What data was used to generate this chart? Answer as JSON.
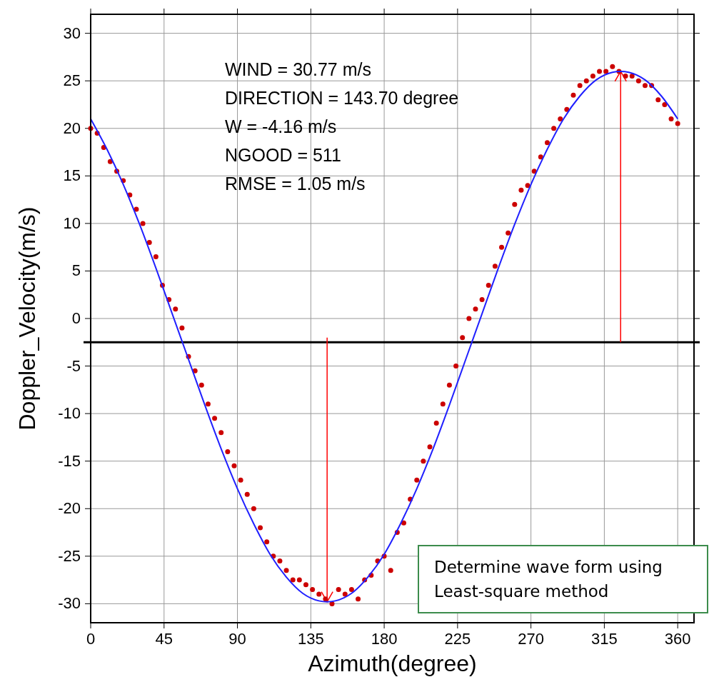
{
  "chart_data": {
    "type": "scatter",
    "xlabel": "Azimuth(degree)",
    "ylabel": "Doppler_Velocity(m/s)",
    "xlim": [
      0,
      370
    ],
    "xticks": [
      0,
      45,
      90,
      135,
      180,
      225,
      270,
      315,
      360
    ],
    "ylim": [
      -32,
      32
    ],
    "yticks": [
      -30,
      -25,
      -20,
      -15,
      -10,
      -5,
      0,
      5,
      10,
      15,
      20,
      25,
      30
    ],
    "grid": true,
    "series": [
      {
        "marker": "circle",
        "color": "#cc0000",
        "x": [
          0,
          4,
          8,
          12,
          16,
          20,
          24,
          28,
          32,
          36,
          40,
          44,
          48,
          52,
          56,
          60,
          64,
          68,
          72,
          76,
          80,
          84,
          88,
          92,
          96,
          100,
          104,
          108,
          112,
          116,
          120,
          124,
          128,
          132,
          136,
          140,
          144,
          148,
          152,
          156,
          160,
          164,
          168,
          172,
          176,
          180,
          184,
          188,
          192,
          196,
          200,
          204,
          208,
          212,
          216,
          220,
          224,
          228,
          232,
          236,
          240,
          244,
          248,
          252,
          256,
          260,
          264,
          268,
          272,
          276,
          280,
          284,
          288,
          292,
          296,
          300,
          304,
          308,
          312,
          316,
          320,
          324,
          328,
          332,
          336,
          340,
          344,
          348,
          352,
          356,
          360
        ],
        "values": [
          20.0,
          19.5,
          18.0,
          16.5,
          15.5,
          14.5,
          13.0,
          11.5,
          10.0,
          8.0,
          6.5,
          3.5,
          2.0,
          1.0,
          -1.0,
          -4.0,
          -5.5,
          -7.0,
          -9.0,
          -10.5,
          -12.0,
          -14.0,
          -15.5,
          -17.0,
          -18.5,
          -20.0,
          -22.0,
          -23.5,
          -25.0,
          -25.5,
          -26.5,
          -27.5,
          -27.5,
          -28.0,
          -28.5,
          -29.0,
          -29.5,
          -30.0,
          -28.5,
          -29.0,
          -28.5,
          -29.5,
          -27.5,
          -27.0,
          -25.5,
          -25.0,
          -26.5,
          -22.5,
          -21.5,
          -19.0,
          -17.0,
          -15.0,
          -13.5,
          -11.0,
          -9.0,
          -7.0,
          -5.0,
          -2.0,
          0.0,
          1.0,
          2.0,
          3.5,
          5.5,
          7.5,
          9.0,
          12.0,
          13.5,
          14.0,
          15.5,
          17.0,
          18.5,
          20.0,
          21.0,
          22.0,
          23.5,
          24.5,
          25.0,
          25.5,
          26.0,
          26.0,
          26.5,
          26.0,
          25.5,
          25.5,
          25.0,
          24.5,
          24.5,
          23.0,
          22.5,
          21.0,
          20.5
        ]
      },
      {
        "type": "line",
        "color": "#2020ff",
        "x": [
          0,
          10,
          20,
          30,
          40,
          50,
          60,
          70,
          80,
          90,
          100,
          110,
          120,
          130,
          140,
          145,
          150,
          160,
          170,
          180,
          190,
          200,
          210,
          220,
          230,
          240,
          250,
          260,
          270,
          280,
          290,
          300,
          310,
          320,
          325,
          330,
          340,
          350,
          360
        ],
        "values": [
          21.0,
          17.8,
          14.1,
          9.9,
          5.3,
          0.5,
          -4.3,
          -9.1,
          -13.7,
          -17.9,
          -21.6,
          -24.8,
          -27.2,
          -28.9,
          -29.7,
          -29.8,
          -29.7,
          -28.9,
          -27.2,
          -24.8,
          -21.6,
          -17.9,
          -13.7,
          -9.1,
          -4.3,
          0.5,
          5.3,
          9.9,
          14.1,
          17.8,
          21.0,
          23.4,
          25.1,
          25.9,
          26.0,
          25.9,
          25.1,
          23.4,
          21.0
        ]
      }
    ],
    "ref_lines": [
      {
        "axis": "y",
        "value": -2.5,
        "color": "#000000"
      }
    ],
    "annotations": [
      "WIND = 30.77 m/s",
      "DIRECTION = 143.70 degree",
      "W = -4.16 m/s",
      "NGOOD = 511",
      "RMSE = 1.05 m/s",
      "Determine wave form using\nLeast-square method"
    ]
  }
}
